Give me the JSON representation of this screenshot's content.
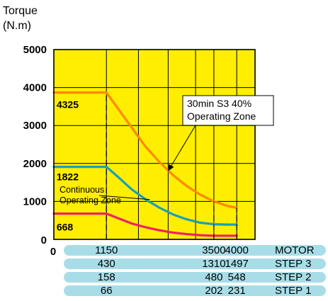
{
  "chart_data": {
    "type": "line",
    "y_unit_label": [
      "Torque",
      "(N.m)"
    ],
    "ylim": [
      0,
      5000
    ],
    "y_ticks": [
      "0",
      "1000",
      "2000",
      "3000",
      "4000",
      "5000"
    ],
    "x_axis_zero": "0",
    "x_ticks": [
      1150,
      3500,
      4000
    ],
    "x_end": 4000,
    "x_vertical_gridlines": [
      1150,
      1850,
      2500,
      3100,
      3500,
      4000
    ],
    "plot_background": "#ffee00",
    "series": [
      {
        "color": "#ff8800",
        "points": [
          [
            0,
            3870
          ],
          [
            1150,
            3870
          ],
          [
            1400,
            3450
          ],
          [
            1700,
            2950
          ],
          [
            2000,
            2450
          ],
          [
            2300,
            2050
          ],
          [
            2600,
            1700
          ],
          [
            2900,
            1410
          ],
          [
            3200,
            1180
          ],
          [
            3500,
            1000
          ],
          [
            3800,
            880
          ],
          [
            4000,
            830
          ]
        ]
      },
      {
        "color": "#1a9fb8",
        "points": [
          [
            0,
            1910
          ],
          [
            1150,
            1910
          ],
          [
            1400,
            1650
          ],
          [
            1700,
            1320
          ],
          [
            2000,
            1060
          ],
          [
            2300,
            840
          ],
          [
            2600,
            660
          ],
          [
            2900,
            530
          ],
          [
            3200,
            440
          ],
          [
            3500,
            400
          ],
          [
            3800,
            390
          ],
          [
            4000,
            390
          ]
        ]
      },
      {
        "color": "#ee2266",
        "points": [
          [
            0,
            680
          ],
          [
            1150,
            680
          ],
          [
            1400,
            560
          ],
          [
            1700,
            420
          ],
          [
            2000,
            320
          ],
          [
            2300,
            240
          ],
          [
            2600,
            180
          ],
          [
            2900,
            140
          ],
          [
            3200,
            110
          ],
          [
            3500,
            95
          ],
          [
            3800,
            95
          ],
          [
            4000,
            95
          ]
        ]
      }
    ],
    "dashed_verticals": [
      {
        "x": 1150,
        "from": 0,
        "to": 3870
      },
      {
        "x": 3500,
        "from": 0,
        "to": 1000
      },
      {
        "x": 4000,
        "from": 0,
        "to": 830
      }
    ],
    "value_callouts": [
      {
        "text": "4325",
        "x": 60,
        "y": 3550
      },
      {
        "text": "1822",
        "x": 60,
        "y": 1650
      },
      {
        "text": "668",
        "x": 60,
        "y": 330
      }
    ],
    "annotations": [
      {
        "lines": [
          "30min S3 40%",
          "Operating Zone"
        ],
        "box": true,
        "arrow_to": [
          2500,
          1800
        ]
      },
      {
        "lines": [
          "Continuous",
          "Operating Zone"
        ],
        "box": false,
        "arrow_to": [
          2100,
          1050
        ]
      }
    ],
    "speed_table": {
      "row_color": "#a8dde8",
      "rows": [
        {
          "label": "MOTOR",
          "values": [
            "1150",
            "3500",
            "4000"
          ]
        },
        {
          "label": "STEP 3",
          "values": [
            "430",
            "1310",
            "1497"
          ]
        },
        {
          "label": "STEP 2",
          "values": [
            "158",
            "480",
            "548"
          ]
        },
        {
          "label": "STEP 1",
          "values": [
            "66",
            "202",
            "231"
          ]
        }
      ]
    }
  }
}
